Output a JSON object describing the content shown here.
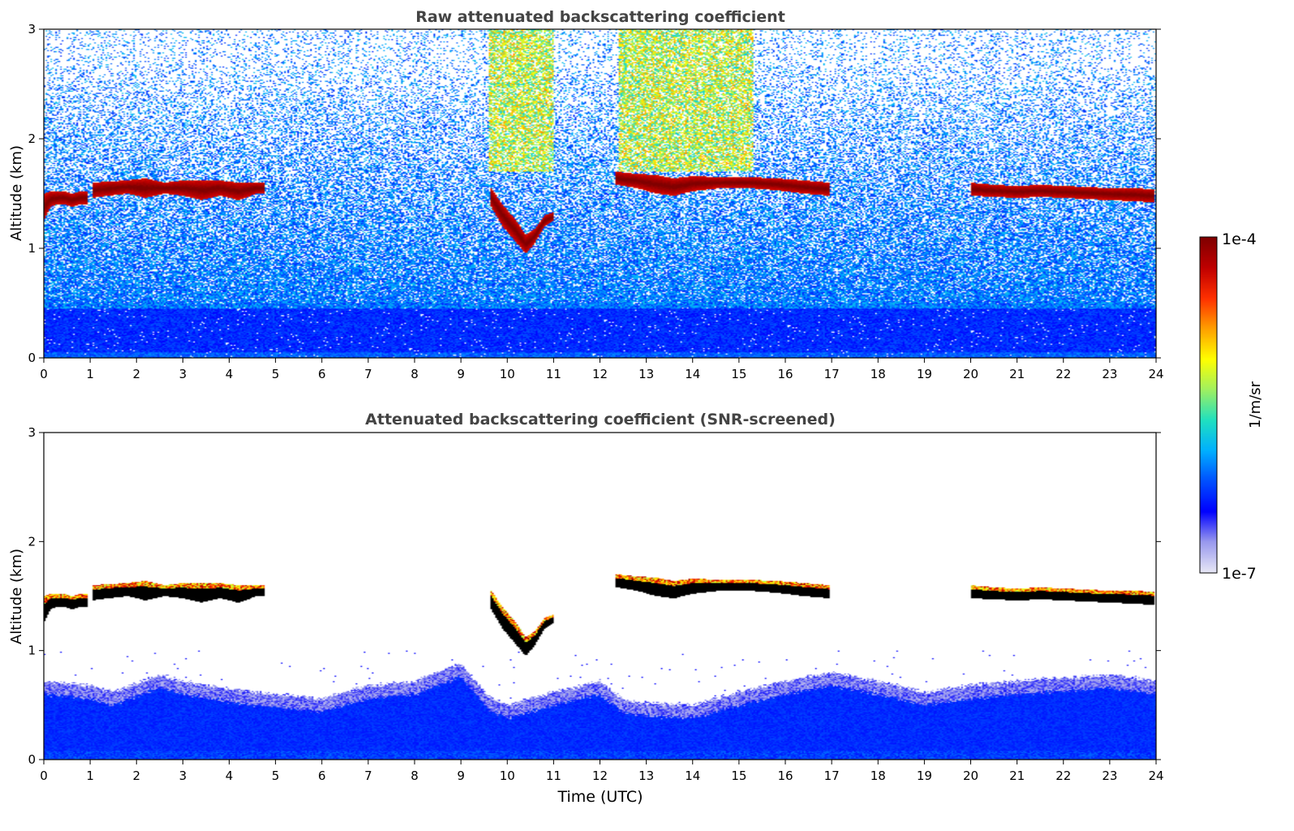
{
  "chart_data": [
    {
      "type": "heatmap",
      "title": "Raw attenuated backscattering coefficient",
      "xlabel": "",
      "ylabel": "Altitude (km)",
      "xlim": [
        0,
        24
      ],
      "ylim": [
        0,
        3
      ],
      "xticks": [
        "0",
        "1",
        "2",
        "3",
        "4",
        "5",
        "6",
        "7",
        "8",
        "9",
        "10",
        "11",
        "12",
        "13",
        "14",
        "15",
        "16",
        "17",
        "18",
        "19",
        "20",
        "21",
        "22",
        "23",
        "24"
      ],
      "yticks": [
        "0",
        "1",
        "2",
        "3"
      ],
      "screened": false,
      "cloud_layers": [
        {
          "t": [
            0.0,
            0.15,
            0.3,
            0.45,
            0.6,
            0.8,
            0.95
          ],
          "base": [
            1.25,
            1.38,
            1.4,
            1.4,
            1.38,
            1.4,
            1.4
          ],
          "top": [
            1.5,
            1.52,
            1.52,
            1.52,
            1.5,
            1.52,
            1.52
          ]
        },
        {
          "t": [
            1.05,
            1.4,
            1.8,
            2.2,
            2.6,
            3.0,
            3.4,
            3.8,
            4.2,
            4.6,
            4.75
          ],
          "base": [
            1.46,
            1.48,
            1.5,
            1.46,
            1.5,
            1.48,
            1.44,
            1.48,
            1.44,
            1.5,
            1.5
          ],
          "top": [
            1.6,
            1.61,
            1.62,
            1.64,
            1.6,
            1.62,
            1.62,
            1.62,
            1.6,
            1.6,
            1.6
          ]
        },
        {
          "t": [
            9.65,
            9.9,
            10.2,
            10.4,
            10.6,
            10.8,
            11.0
          ],
          "base": [
            1.38,
            1.2,
            1.05,
            0.95,
            1.05,
            1.2,
            1.25
          ],
          "top": [
            1.55,
            1.4,
            1.25,
            1.12,
            1.18,
            1.3,
            1.33
          ]
        },
        {
          "t": [
            12.35,
            12.8,
            13.2,
            13.6,
            14.0,
            14.6,
            15.2,
            15.8,
            16.4,
            16.95
          ],
          "base": [
            1.58,
            1.55,
            1.5,
            1.48,
            1.52,
            1.55,
            1.55,
            1.53,
            1.5,
            1.48
          ],
          "top": [
            1.7,
            1.68,
            1.67,
            1.64,
            1.66,
            1.65,
            1.65,
            1.64,
            1.62,
            1.6
          ]
        },
        {
          "t": [
            20.0,
            20.5,
            21.0,
            21.5,
            22.0,
            22.5,
            23.0,
            23.5,
            23.95
          ],
          "base": [
            1.48,
            1.47,
            1.46,
            1.47,
            1.46,
            1.45,
            1.44,
            1.43,
            1.42
          ],
          "top": [
            1.6,
            1.58,
            1.57,
            1.58,
            1.57,
            1.56,
            1.55,
            1.55,
            1.54
          ]
        }
      ]
    },
    {
      "type": "heatmap",
      "title": "Attenuated backscattering coefficient (SNR-screened)",
      "xlabel": "Time (UTC)",
      "ylabel": "Altitude (km)",
      "xlim": [
        0,
        24
      ],
      "ylim": [
        0,
        3
      ],
      "xticks": [
        "0",
        "1",
        "2",
        "3",
        "4",
        "5",
        "6",
        "7",
        "8",
        "9",
        "10",
        "11",
        "12",
        "13",
        "14",
        "15",
        "16",
        "17",
        "18",
        "19",
        "20",
        "21",
        "22",
        "23",
        "24"
      ],
      "yticks": [
        "0",
        "1",
        "2",
        "3"
      ],
      "screened": true,
      "boundary_layer_top": {
        "t": [
          0,
          1,
          1.5,
          2,
          2.5,
          3,
          4,
          5,
          6,
          7,
          8,
          9,
          9.6,
          10,
          11,
          12,
          12.5,
          13,
          14,
          15,
          16,
          17,
          18,
          19,
          20,
          21,
          22,
          23,
          24
        ],
        "h": [
          0.72,
          0.68,
          0.62,
          0.7,
          0.78,
          0.72,
          0.65,
          0.6,
          0.56,
          0.68,
          0.72,
          0.88,
          0.58,
          0.5,
          0.62,
          0.72,
          0.55,
          0.52,
          0.5,
          0.62,
          0.72,
          0.8,
          0.72,
          0.62,
          0.68,
          0.72,
          0.75,
          0.78,
          0.72
        ]
      }
    }
  ],
  "colorbar": {
    "label": "1/m/sr",
    "min_label": "1e-7",
    "max_label": "1e-4",
    "colors": [
      "#e6e6f5",
      "#9999ee",
      "#0000ff",
      "#0050ff",
      "#00b0ff",
      "#20e0c0",
      "#a0f060",
      "#ffff00",
      "#ffa000",
      "#ff3000",
      "#c00000",
      "#800000"
    ]
  }
}
